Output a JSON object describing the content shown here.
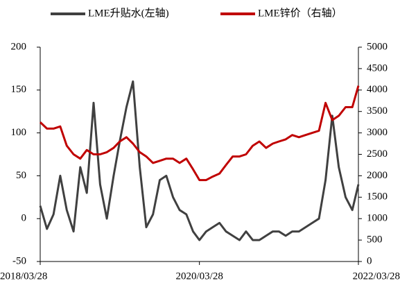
{
  "chart_data": {
    "type": "line",
    "x": [
      "2018/03/28",
      "2018/04/28",
      "2018/05/28",
      "2018/06/28",
      "2018/07/28",
      "2018/08/28",
      "2018/09/28",
      "2018/10/28",
      "2018/11/28",
      "2018/12/28",
      "2019/01/28",
      "2019/02/28",
      "2019/03/28",
      "2019/04/28",
      "2019/05/28",
      "2019/06/28",
      "2019/07/28",
      "2019/08/28",
      "2019/09/28",
      "2019/10/28",
      "2019/11/28",
      "2019/12/28",
      "2020/01/28",
      "2020/02/28",
      "2020/03/28",
      "2020/04/28",
      "2020/05/28",
      "2020/06/28",
      "2020/07/28",
      "2020/08/28",
      "2020/09/28",
      "2020/10/28",
      "2020/11/28",
      "2020/12/28",
      "2021/01/28",
      "2021/02/28",
      "2021/03/28",
      "2021/04/28",
      "2021/05/28",
      "2021/06/28",
      "2021/07/28",
      "2021/08/28",
      "2021/09/28",
      "2021/10/28",
      "2021/11/28",
      "2021/12/28",
      "2022/01/28",
      "2022/02/28",
      "2022/03/28"
    ],
    "series": [
      {
        "name": "LME升贴水(左轴)",
        "color": "#404040",
        "axis": "y",
        "values": [
          15,
          -12,
          5,
          50,
          10,
          -15,
          60,
          30,
          135,
          40,
          0,
          50,
          90,
          130,
          160,
          60,
          -10,
          5,
          45,
          50,
          25,
          10,
          5,
          -15,
          -25,
          -15,
          -10,
          -5,
          -15,
          -20,
          -25,
          -15,
          -25,
          -25,
          -20,
          -15,
          -15,
          -20,
          -15,
          -15,
          -10,
          -5,
          0,
          45,
          120,
          60,
          25,
          10,
          40
        ]
      },
      {
        "name": "LME锌价（右轴）",
        "color": "#c00000",
        "axis": "y2",
        "values": [
          3250,
          3100,
          3100,
          3150,
          2700,
          2500,
          2400,
          2600,
          2500,
          2500,
          2550,
          2650,
          2800,
          2900,
          2750,
          2550,
          2450,
          2300,
          2350,
          2400,
          2400,
          2300,
          2400,
          2150,
          1900,
          1900,
          1980,
          2050,
          2250,
          2450,
          2450,
          2500,
          2700,
          2800,
          2650,
          2750,
          2800,
          2850,
          2950,
          2900,
          2950,
          3000,
          3050,
          3700,
          3300,
          3400,
          3600,
          3600,
          4100
        ]
      }
    ],
    "xlim": [
      "2018/03/28",
      "2022/03/28"
    ],
    "xticks": [
      "2018/03/28",
      "2020/03/28",
      "2022/03/28"
    ],
    "ylim": [
      -50,
      200
    ],
    "yticks": [
      -50,
      0,
      50,
      100,
      150,
      200
    ],
    "y2lim": [
      0,
      5000
    ],
    "y2ticks": [
      0,
      500,
      1000,
      1500,
      2000,
      2500,
      3000,
      3500,
      4000,
      4500,
      5000
    ]
  }
}
